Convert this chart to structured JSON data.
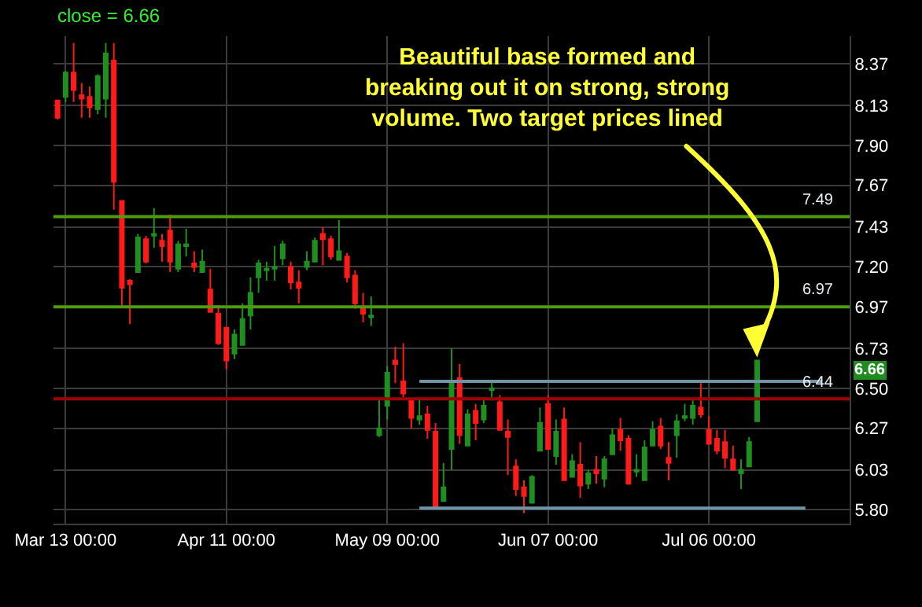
{
  "chart_data": {
    "type": "candlestick",
    "title": "close = 6.66",
    "annotations": [
      "Beautiful base formed and breaking out it on strong, strong volume. Two target prices lined",
      "6.66"
    ],
    "categories": [
      null,
      "Mar 13 00:00",
      null,
      null,
      null,
      null,
      null,
      null,
      null,
      null,
      null,
      null,
      null,
      null,
      null,
      null,
      null,
      null,
      null,
      null,
      null,
      "Apr 11 00:00",
      null,
      null,
      null,
      null,
      null,
      null,
      null,
      null,
      null,
      null,
      null,
      null,
      null,
      null,
      null,
      null,
      null,
      null,
      null,
      "May 09 00:00",
      null,
      null,
      null,
      null,
      null,
      null,
      null,
      null,
      null,
      null,
      null,
      null,
      null,
      null,
      null,
      null,
      null,
      null,
      null,
      "Jun 07 00:00",
      null,
      null,
      null,
      null,
      null,
      null,
      null,
      null,
      null,
      null,
      null,
      null,
      null,
      null,
      null,
      null,
      null,
      null,
      null,
      "Jul 06 00:00",
      null,
      null,
      null,
      null,
      null,
      null,
      null,
      null,
      null,
      null,
      null,
      null,
      null,
      null,
      null,
      null,
      null
    ],
    "ohlc": [
      [
        8.16,
        8.16,
        8.05,
        8.06
      ],
      [
        8.18,
        8.33,
        8.15,
        8.32
      ],
      [
        8.32,
        8.49,
        8.15,
        8.22
      ],
      [
        8.19,
        8.26,
        8.06,
        8.17
      ],
      [
        8.18,
        8.24,
        8.06,
        8.12
      ],
      [
        8.11,
        8.31,
        8.08,
        8.3
      ],
      [
        8.17,
        8.49,
        8.06,
        8.43
      ],
      [
        8.39,
        8.49,
        7.53,
        7.69
      ],
      [
        7.58,
        7.58,
        6.97,
        7.08
      ],
      [
        7.12,
        7.13,
        6.87,
        7.1
      ],
      [
        7.17,
        7.39,
        7.17,
        7.37
      ],
      [
        7.36,
        7.38,
        7.22,
        7.23
      ],
      [
        7.38,
        7.54,
        7.31,
        7.39
      ],
      [
        7.35,
        7.39,
        7.23,
        7.32
      ],
      [
        7.41,
        7.5,
        7.17,
        7.23
      ],
      [
        7.19,
        7.35,
        7.17,
        7.33
      ],
      [
        7.32,
        7.42,
        7.26,
        7.33
      ],
      [
        7.22,
        7.29,
        7.17,
        7.2
      ],
      [
        7.17,
        7.3,
        7.17,
        7.23
      ],
      [
        7.07,
        7.19,
        6.94,
        6.94
      ],
      [
        6.93,
        6.98,
        6.75,
        6.76
      ],
      [
        6.85,
        6.85,
        6.61,
        6.66
      ],
      [
        6.7,
        6.84,
        6.67,
        6.81
      ],
      [
        6.75,
        6.99,
        6.75,
        6.9
      ],
      [
        6.92,
        7.14,
        6.84,
        7.05
      ],
      [
        7.14,
        7.24,
        7.05,
        7.22
      ],
      [
        7.18,
        7.23,
        7.12,
        7.19
      ],
      [
        7.19,
        7.32,
        7.12,
        7.2
      ],
      [
        7.25,
        7.35,
        7.21,
        7.33
      ],
      [
        7.2,
        7.23,
        7.07,
        7.11
      ],
      [
        7.11,
        7.18,
        6.99,
        7.08
      ],
      [
        7.2,
        7.29,
        7.18,
        7.23
      ],
      [
        7.23,
        7.37,
        7.23,
        7.35
      ],
      [
        7.39,
        7.43,
        7.21,
        7.36
      ],
      [
        7.36,
        7.38,
        7.24,
        7.26
      ],
      [
        7.24,
        7.47,
        7.24,
        7.29
      ],
      [
        7.26,
        7.28,
        7.11,
        7.14
      ],
      [
        7.15,
        7.18,
        6.96,
        6.99
      ],
      [
        6.96,
        7.05,
        6.88,
        6.93
      ],
      [
        6.91,
        7.03,
        6.86,
        6.92
      ],
      [
        6.23,
        6.44,
        6.22,
        6.27
      ],
      [
        6.4,
        6.63,
        6.32,
        6.59
      ],
      [
        6.66,
        6.74,
        6.53,
        6.64
      ],
      [
        6.54,
        6.76,
        6.45,
        6.47
      ],
      [
        6.44,
        6.44,
        6.27,
        6.33
      ],
      [
        6.32,
        6.44,
        6.29,
        6.34
      ],
      [
        6.35,
        6.4,
        6.21,
        6.26
      ],
      [
        6.25,
        6.3,
        5.82,
        5.82
      ],
      [
        5.85,
        6.07,
        5.85,
        5.93
      ],
      [
        6.15,
        6.73,
        6.03,
        6.54
      ],
      [
        6.56,
        6.64,
        6.18,
        6.23
      ],
      [
        6.17,
        6.38,
        6.17,
        6.35
      ],
      [
        6.37,
        6.41,
        6.2,
        6.3
      ],
      [
        6.32,
        6.45,
        6.3,
        6.4
      ],
      [
        6.49,
        6.54,
        6.43,
        6.5
      ],
      [
        6.42,
        6.46,
        6.26,
        6.26
      ],
      [
        6.25,
        6.32,
        6.0,
        6.22
      ],
      [
        6.05,
        6.09,
        5.88,
        5.92
      ],
      [
        5.93,
        5.97,
        5.78,
        5.88
      ],
      [
        5.84,
        6.0,
        5.84,
        5.99
      ],
      [
        6.14,
        6.39,
        6.14,
        6.3
      ],
      [
        6.41,
        6.46,
        6.15,
        6.15
      ],
      [
        6.11,
        6.32,
        6.06,
        6.25
      ],
      [
        6.32,
        6.39,
        5.97,
        5.97
      ],
      [
        5.99,
        6.12,
        5.99,
        6.08
      ],
      [
        6.06,
        6.19,
        5.87,
        5.94
      ],
      [
        5.95,
        6.03,
        5.92,
        6.01
      ],
      [
        6.03,
        6.11,
        5.95,
        6.01
      ],
      [
        5.98,
        6.11,
        5.93,
        6.09
      ],
      [
        6.12,
        6.27,
        6.12,
        6.23
      ],
      [
        6.26,
        6.33,
        6.14,
        6.2
      ],
      [
        6.21,
        6.23,
        5.95,
        5.95
      ],
      [
        6.02,
        6.12,
        5.99,
        6.03
      ],
      [
        5.97,
        6.2,
        5.97,
        6.16
      ],
      [
        6.17,
        6.31,
        6.17,
        6.26
      ],
      [
        6.28,
        6.33,
        6.15,
        6.17
      ],
      [
        6.1,
        6.19,
        5.97,
        6.07
      ],
      [
        6.23,
        6.35,
        6.1,
        6.31
      ],
      [
        6.33,
        6.41,
        6.31,
        6.34
      ],
      [
        6.33,
        6.44,
        6.29,
        6.4
      ],
      [
        6.39,
        6.53,
        6.33,
        6.35
      ],
      [
        6.26,
        6.34,
        6.18,
        6.18
      ],
      [
        6.21,
        6.26,
        6.12,
        6.14
      ],
      [
        6.19,
        6.26,
        6.04,
        6.1
      ],
      [
        6.09,
        6.17,
        6.03,
        6.03
      ],
      [
        6.01,
        6.09,
        5.92,
        6.03
      ],
      [
        6.05,
        6.22,
        6.05,
        6.19
      ],
      [
        6.31,
        6.66,
        6.31,
        6.66
      ],
      null,
      null,
      null,
      null,
      null,
      null,
      null,
      null,
      null,
      null,
      null
    ],
    "colors": [
      "#ff1a1a",
      "#1f8f1f",
      "#ff1a1a",
      "#ff1a1a",
      "#ff1a1a",
      "#1f8f1f",
      "#1f8f1f",
      "#ff1a1a",
      "#ff1a1a",
      "#ff1a1a",
      "#1f8f1f",
      "#ff1a1a",
      "#1f8f1f",
      "#ff1a1a",
      "#ff1a1a",
      "#1f8f1f",
      "#1f8f1f",
      "#ff1a1a",
      "#1f8f1f",
      "#ff1a1a",
      "#ff1a1a",
      "#ff1a1a",
      "#1f8f1f",
      "#1f8f1f",
      "#1f8f1f",
      "#1f8f1f",
      "#1f8f1f",
      "#1f8f1f",
      "#1f8f1f",
      "#ff1a1a",
      "#ff1a1a",
      "#1f8f1f",
      "#1f8f1f",
      "#ff1a1a",
      "#ff1a1a",
      "#1f8f1f",
      "#ff1a1a",
      "#ff1a1a",
      "#ff1a1a",
      "#1f8f1f",
      "#1f8f1f",
      "#1f8f1f",
      "#ff1a1a",
      "#ff1a1a",
      "#ff1a1a",
      "#1f8f1f",
      "#ff1a1a",
      "#ff1a1a",
      "#1f8f1f",
      "#1f8f1f",
      "#ff1a1a",
      "#1f8f1f",
      "#ff1a1a",
      "#1f8f1f",
      "#1f8f1f",
      "#ff1a1a",
      "#ff1a1a",
      "#ff1a1a",
      "#ff1a1a",
      "#1f8f1f",
      "#1f8f1f",
      "#ff1a1a",
      "#1f8f1f",
      "#ff1a1a",
      "#1f8f1f",
      "#ff1a1a",
      "#1f8f1f",
      "#ff1a1a",
      "#1f8f1f",
      "#1f8f1f",
      "#ff1a1a",
      "#ff1a1a",
      "#1f8f1f",
      "#1f8f1f",
      "#1f8f1f",
      "#ff1a1a",
      "#ff1a1a",
      "#1f8f1f",
      "#1f8f1f",
      "#1f8f1f",
      "#ff1a1a",
      "#ff1a1a",
      "#ff1a1a",
      "#ff1a1a",
      "#ff1a1a",
      "#1f8f1f",
      "#1f8f1f",
      "#1f8f1f",
      null,
      null,
      null,
      null,
      null,
      null,
      null,
      null,
      null,
      null,
      null
    ],
    "series": [
      {
        "type": "line",
        "color": "#6f94a8",
        "values": [
          null,
          null,
          null,
          null,
          null,
          null,
          null,
          null,
          null,
          null,
          null,
          null,
          null,
          null,
          null,
          null,
          null,
          null,
          null,
          null,
          null,
          null,
          null,
          null,
          null,
          null,
          null,
          null,
          null,
          null,
          null,
          null,
          null,
          null,
          null,
          null,
          null,
          null,
          null,
          null,
          null,
          null,
          null,
          null,
          null,
          6.54,
          6.54,
          6.54,
          6.54,
          6.54,
          6.54,
          6.54,
          6.54,
          6.54,
          6.54,
          6.54,
          6.54,
          6.54,
          6.54,
          6.54,
          6.54,
          6.54,
          6.54,
          6.54,
          6.54,
          6.54,
          6.54,
          6.54,
          6.54,
          6.54,
          6.54,
          6.54,
          6.54,
          6.54,
          6.54,
          6.54,
          6.54,
          6.54,
          6.54,
          6.54,
          6.54,
          6.54,
          6.54,
          6.54,
          6.54,
          6.54,
          6.54,
          6.54,
          6.54,
          6.54,
          6.54,
          6.54,
          6.54,
          6.54,
          6.54,
          6.54,
          null,
          null,
          null
        ]
      },
      {
        "type": "line",
        "color": "#6f94a8",
        "values": [
          null,
          null,
          null,
          null,
          null,
          null,
          null,
          null,
          null,
          null,
          null,
          null,
          null,
          null,
          null,
          null,
          null,
          null,
          null,
          null,
          null,
          null,
          null,
          null,
          null,
          null,
          null,
          null,
          null,
          null,
          null,
          null,
          null,
          null,
          null,
          null,
          null,
          null,
          null,
          null,
          null,
          null,
          null,
          null,
          null,
          5.81,
          5.81,
          5.81,
          5.81,
          5.81,
          5.81,
          5.81,
          5.81,
          5.81,
          5.81,
          5.81,
          5.81,
          5.81,
          5.81,
          5.81,
          5.81,
          5.81,
          5.81,
          5.81,
          5.81,
          5.81,
          5.81,
          5.81,
          5.81,
          5.81,
          5.81,
          5.81,
          5.81,
          5.81,
          5.81,
          5.81,
          5.81,
          5.81,
          5.81,
          5.81,
          5.81,
          5.81,
          5.81,
          5.81,
          5.81,
          5.81,
          5.81,
          5.81,
          5.81,
          5.81,
          5.81,
          5.81,
          5.81,
          5.81,
          null,
          null,
          null,
          null,
          null
        ]
      }
    ],
    "ref_lines": [
      {
        "axis": "y",
        "value": 7.49,
        "label": "7.49",
        "color": "#4f9a10"
      },
      {
        "axis": "y",
        "value": 6.97,
        "label": "6.97",
        "color": "#4f9a10"
      },
      {
        "axis": "y",
        "value": 6.44,
        "label": "6.44",
        "color": "#a00000"
      }
    ],
    "ylim": [
      5.72,
      8.53
    ],
    "yticks": [
      {
        "value": 5.8,
        "label": "5.80"
      },
      6.03,
      6.27,
      {
        "value": 6.5,
        "label": "6.50"
      },
      6.73,
      6.97,
      {
        "value": 7.2,
        "label": "7.20"
      },
      7.43,
      7.67,
      {
        "value": 7.9,
        "label": "7.90"
      },
      8.13,
      8.37
    ],
    "grid": true
  }
}
